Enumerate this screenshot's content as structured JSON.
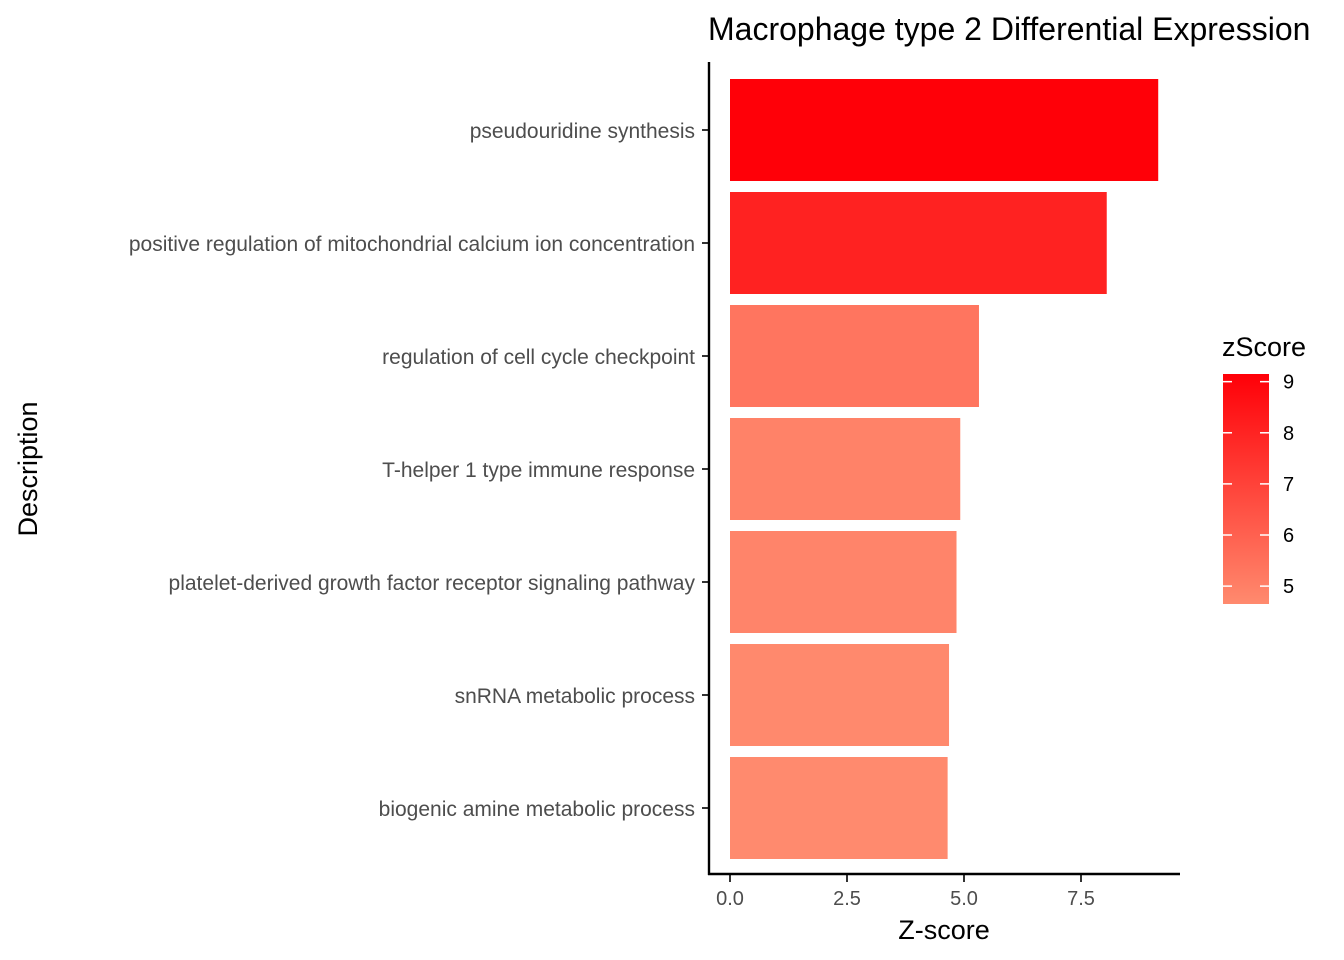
{
  "chart_data": {
    "type": "bar",
    "orientation": "horizontal",
    "title": "Macrophage type 2 Differential Expression",
    "xlabel": "Z-score",
    "ylabel": "Description",
    "categories": [
      "pseudouridine synthesis",
      "positive regulation of mitochondrial calcium ion concentration",
      "regulation of cell cycle checkpoint",
      "T-helper 1 type immune response",
      "platelet-derived growth factor receptor signaling pathway",
      "snRNA metabolic process",
      "biogenic amine metabolic process"
    ],
    "values": [
      9.15,
      8.05,
      5.32,
      4.92,
      4.84,
      4.68,
      4.65
    ],
    "xlim": [
      -0.46,
      9.6
    ],
    "xticks": [
      0,
      2.5,
      5.0,
      7.5
    ],
    "xtick_labels": [
      "0.0",
      "2.5",
      "5.0",
      "7.5"
    ],
    "grid": false,
    "legend": {
      "title": "zScore",
      "placement": "right",
      "ticks": [
        9,
        8,
        7,
        6,
        5
      ],
      "tick_labels": [
        "9",
        "8",
        "7",
        "6",
        "5"
      ],
      "range": [
        4.65,
        9.15
      ],
      "color_low": "#ff8a6e",
      "color_high": "#ff0008"
    }
  }
}
